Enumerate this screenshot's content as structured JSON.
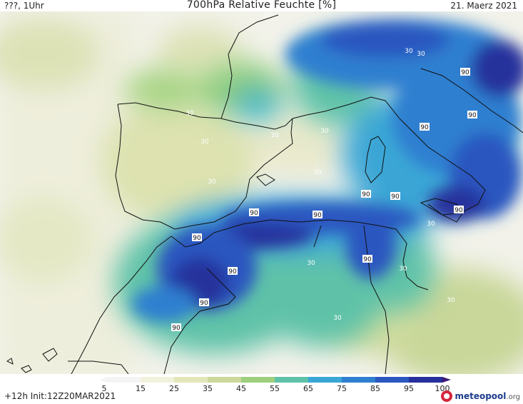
{
  "header": {
    "left": "???, 1Uhr",
    "title": "700hPa Relative Feuchte [%]",
    "date": "21. Maerz 2021"
  },
  "map": {
    "contour_labels": [
      "30",
      "30",
      "90",
      "30",
      "90",
      "30",
      "30",
      "30",
      "30",
      "90",
      "30",
      "30",
      "90",
      "90",
      "90",
      "90",
      "90",
      "90",
      "90",
      "90",
      "30",
      "30",
      "90",
      "90",
      "30",
      "30",
      "30"
    ]
  },
  "legend": {
    "ticks": [
      "5",
      "15",
      "25",
      "35",
      "45",
      "55",
      "65",
      "75",
      "85",
      "95",
      "100"
    ],
    "colors": [
      "#f4f4f4",
      "#f2f1dc",
      "#e3e6b8",
      "#ccd89a",
      "#9dcf7d",
      "#5fc2a8",
      "#3aa6d6",
      "#2e7fd0",
      "#2a57c0",
      "#25309c",
      "#3b1a78"
    ]
  },
  "footer": {
    "init": "+12h  Init:12Z20MAR2021",
    "brand": "meteopool",
    "brand_suffix": ".org"
  }
}
